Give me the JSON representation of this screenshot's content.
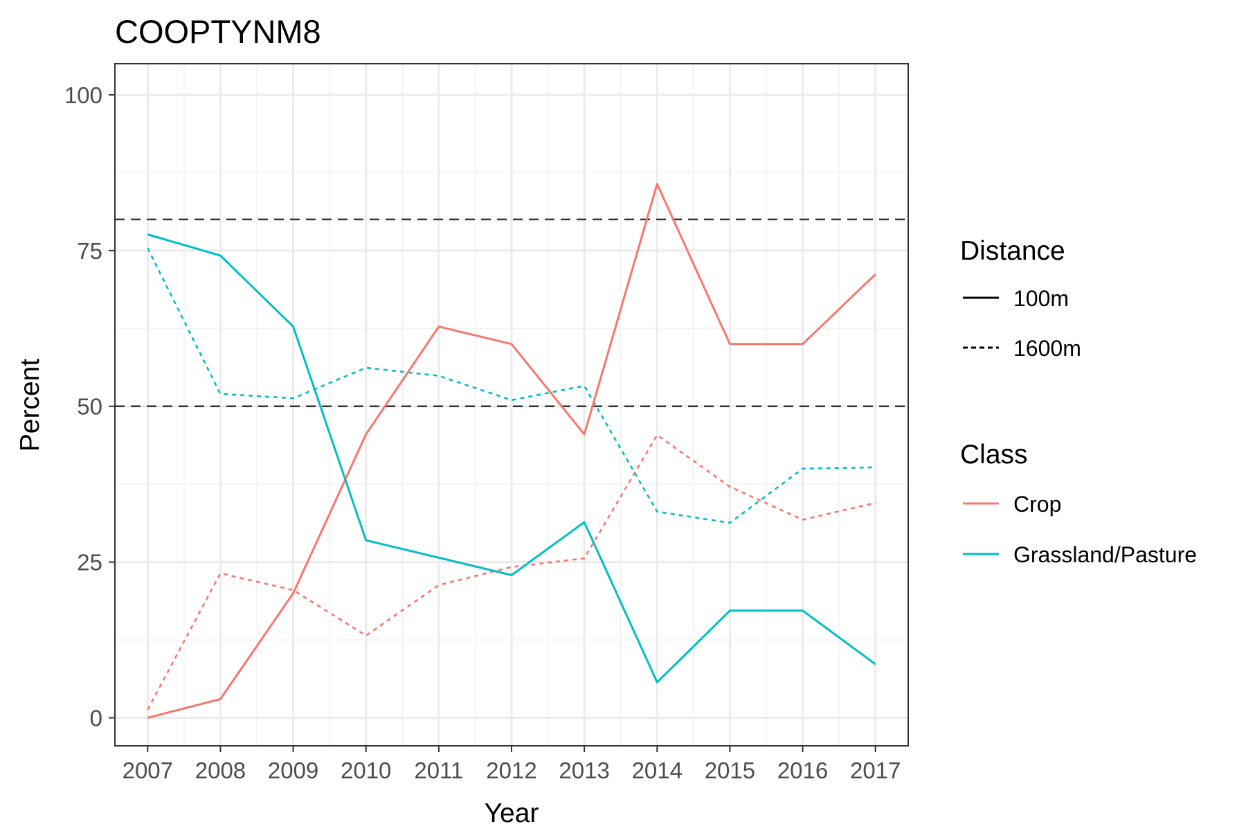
{
  "chart_data": {
    "type": "line",
    "title": "COOPTYNM8",
    "xlabel": "Year",
    "ylabel": "Percent",
    "x": [
      2007,
      2008,
      2009,
      2010,
      2011,
      2012,
      2013,
      2014,
      2015,
      2016,
      2017
    ],
    "xlim": [
      2006.55,
      2017.45
    ],
    "ylim": [
      -4.5,
      105
    ],
    "yticks": [
      0,
      25,
      50,
      75,
      100
    ],
    "grid": true,
    "reference_lines": [
      {
        "y": 80,
        "style": "dashed",
        "color": "#333333"
      },
      {
        "y": 50,
        "style": "dashed",
        "color": "#333333"
      }
    ],
    "series": [
      {
        "name": "Crop",
        "distance": "100m",
        "color": "#F8766D",
        "linetype": "solid",
        "values": [
          0,
          3,
          20,
          45.5,
          62.8,
          60,
          45.5,
          85.7,
          60,
          60,
          71.2
        ]
      },
      {
        "name": "Grassland/Pasture",
        "distance": "100m",
        "color": "#00BFC4",
        "linetype": "solid",
        "values": [
          77.6,
          74.2,
          62.8,
          28.5,
          25.7,
          22.9,
          31.4,
          5.7,
          17.2,
          17.2,
          8.6
        ]
      },
      {
        "name": "Crop",
        "distance": "1600m",
        "color": "#F8766D",
        "linetype": "dotted",
        "values": [
          1.3,
          23.2,
          20.5,
          13.2,
          21.3,
          24.2,
          25.6,
          45.4,
          37.1,
          31.8,
          34.5
        ]
      },
      {
        "name": "Grassland/Pasture",
        "distance": "1600m",
        "color": "#00BFC4",
        "linetype": "dotted",
        "values": [
          75.4,
          52,
          51.3,
          56.2,
          54.9,
          51,
          53.3,
          33.1,
          31.3,
          40,
          40.2
        ]
      }
    ],
    "legend": {
      "placement": "right",
      "distance": {
        "title": "Distance",
        "items": [
          {
            "label": "100m",
            "linetype": "solid"
          },
          {
            "label": "1600m",
            "linetype": "dotted"
          }
        ]
      },
      "class": {
        "title": "Class",
        "items": [
          {
            "label": "Crop",
            "color": "#F8766D"
          },
          {
            "label": "Grassland/Pasture",
            "color": "#00BFC4"
          }
        ]
      }
    }
  }
}
